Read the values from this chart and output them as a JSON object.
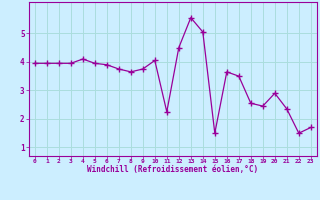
{
  "x": [
    0,
    1,
    2,
    3,
    4,
    5,
    6,
    7,
    8,
    9,
    10,
    11,
    12,
    13,
    14,
    15,
    16,
    17,
    18,
    19,
    20,
    21,
    22,
    23
  ],
  "y": [
    3.95,
    3.95,
    3.95,
    3.95,
    4.1,
    3.95,
    3.9,
    3.75,
    3.65,
    3.75,
    4.05,
    2.25,
    4.5,
    5.55,
    5.05,
    1.5,
    3.65,
    3.5,
    2.55,
    2.45,
    2.9,
    2.35,
    1.5,
    1.7
  ],
  "line_color": "#990099",
  "marker": "+",
  "bg_color": "#cceeff",
  "grid_color": "#aadddd",
  "xlabel": "Windchill (Refroidissement éolien,°C)",
  "xlim": [
    -0.5,
    23.5
  ],
  "ylim": [
    0.7,
    6.1
  ],
  "yticks": [
    1,
    2,
    3,
    4,
    5
  ],
  "xticks": [
    0,
    1,
    2,
    3,
    4,
    5,
    6,
    7,
    8,
    9,
    10,
    11,
    12,
    13,
    14,
    15,
    16,
    17,
    18,
    19,
    20,
    21,
    22,
    23
  ],
  "tick_color": "#990099",
  "label_color": "#990099",
  "spine_color": "#990099"
}
